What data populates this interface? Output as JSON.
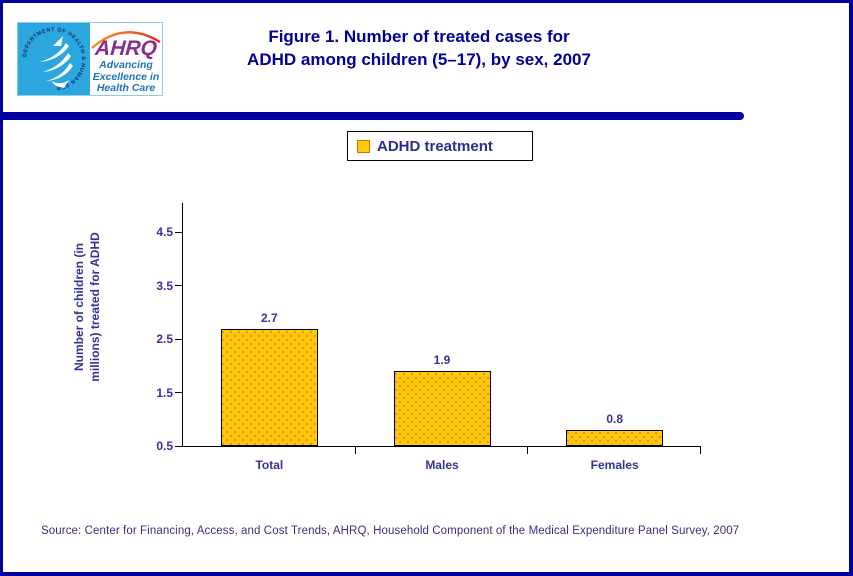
{
  "page": {
    "border_color": "#0000A0",
    "background": "#FFFFFF"
  },
  "logo": {
    "seal_text": "DEPARTMENT OF HEALTH & HUMAN SERVICES • USA",
    "ahrq": "AHRQ",
    "tagline_line1": "Advancing",
    "tagline_line2": "Excellence in",
    "tagline_line3": "Health Care",
    "colors": {
      "seal_bg": "#2BA6DE",
      "ahrq_purple": "#8C2C8F",
      "tagline_blue": "#1B75BC"
    }
  },
  "title": {
    "line1": "Figure 1. Number of treated cases for",
    "line2": "ADHD among children (5–17), by sex, 2007",
    "color": "#000099"
  },
  "legend": {
    "label": "ADHD treatment",
    "swatch_fill": "#FFC80A",
    "swatch_border": "#C87800"
  },
  "chart_data": {
    "type": "bar",
    "title": "Figure 1. Number of treated cases for ADHD among children (5–17), by sex, 2007",
    "categories": [
      "Total",
      "Males",
      "Females"
    ],
    "values": [
      2.7,
      1.9,
      0.8
    ],
    "value_labels": [
      "2.7",
      "1.9",
      "0.8"
    ],
    "xlabel": "",
    "ylabel_line1": "Number of children (in",
    "ylabel_line2": "millions) treated for ADHD",
    "yticks": [
      0.5,
      1.5,
      2.5,
      3.5,
      4.5
    ],
    "ylim": [
      0.5,
      5.05
    ],
    "baseline": 0.5,
    "grid": false,
    "legend_entries": [
      "ADHD treatment"
    ],
    "legend_position": "top-center",
    "bar_fill": "#FFC80A",
    "bar_dot_color": "#F07818",
    "bar_border": "#000000",
    "axis_color": "#000000",
    "label_color": "#333399"
  },
  "source": {
    "text": "Source: Center for Financing, Access, and Cost Trends, AHRQ, Household Component of the Medical Expenditure Panel Survey, 2007"
  }
}
